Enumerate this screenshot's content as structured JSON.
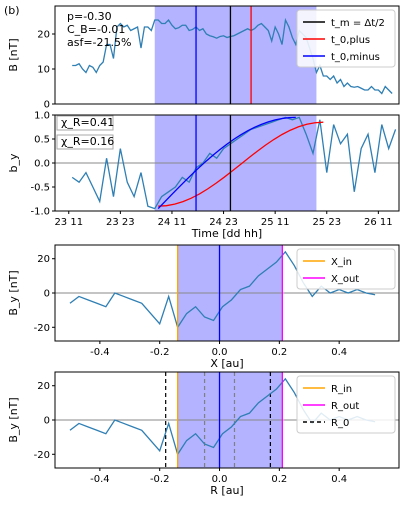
{
  "panel_label": "(b)",
  "chart_data": [
    {
      "type": "line",
      "ylabel": "B [nT]",
      "ylim": [
        0,
        28
      ],
      "yticks": [
        "0",
        "10",
        "20"
      ],
      "xlim": [
        0,
        5
      ],
      "annotations": [
        "p=-0.30",
        "C_B=-0.01",
        "asf=-21.5%"
      ],
      "legend": [
        "t_m = Δt/2",
        "t_0,plus",
        "t_0,minus"
      ],
      "legend_colors": [
        "#000000",
        "#ff0000",
        "#0000ff"
      ],
      "shade": [
        1.45,
        3.8
      ],
      "vlines": [
        {
          "x": 2.05,
          "color": "#0000ff"
        },
        {
          "x": 2.55,
          "color": "#000000"
        },
        {
          "x": 2.85,
          "color": "#ff0000"
        }
      ],
      "series": [
        {
          "color": "#2f7fb4",
          "x": [
            0.25,
            0.3,
            0.35,
            0.4,
            0.45,
            0.5,
            0.55,
            0.6,
            0.65,
            0.7,
            0.75,
            0.8,
            0.85,
            0.9,
            0.95,
            1.0,
            1.05,
            1.1,
            1.15,
            1.2,
            1.25,
            1.3,
            1.35,
            1.4,
            1.45,
            1.5,
            1.55,
            1.6,
            1.65,
            1.7,
            1.75,
            1.8,
            1.85,
            1.9,
            1.95,
            2.0,
            2.05,
            2.1,
            2.15,
            2.2,
            2.25,
            2.3,
            2.35,
            2.4,
            2.45,
            2.5,
            2.55,
            2.6,
            2.65,
            2.7,
            2.75,
            2.8,
            2.85,
            2.9,
            2.95,
            3.0,
            3.05,
            3.1,
            3.15,
            3.2,
            3.25,
            3.3,
            3.35,
            3.4,
            3.45,
            3.5,
            3.55,
            3.6,
            3.65,
            3.7,
            3.75,
            3.8,
            3.85,
            3.9,
            3.95,
            4.0,
            4.05,
            4.1,
            4.15,
            4.2,
            4.25,
            4.3,
            4.35,
            4.4,
            4.45,
            4.5,
            4.55,
            4.6,
            4.65,
            4.7,
            4.75,
            4.8,
            4.85,
            4.9
          ],
          "values": [
            11,
            11,
            11.5,
            10,
            9,
            11,
            10.5,
            9,
            11,
            12,
            17,
            17,
            13,
            22,
            23,
            22,
            22.5,
            21,
            21.5,
            22,
            16,
            22,
            22,
            21,
            24,
            24,
            23,
            23,
            24,
            22.5,
            21.5,
            21.8,
            22.5,
            22.5,
            21,
            21.3,
            22,
            21,
            21.5,
            20,
            19.5,
            19.2,
            18.8,
            19.3,
            19.5,
            19,
            19.3,
            19.5,
            20,
            20.5,
            21,
            21.5,
            21,
            21.5,
            22.5,
            23,
            22,
            21,
            18,
            22,
            20,
            17,
            24,
            22,
            19,
            17,
            21,
            20,
            19,
            16,
            13,
            9,
            11,
            8,
            8,
            7,
            8,
            6,
            7,
            5,
            6,
            5,
            4.8,
            5,
            4.5,
            4,
            4,
            5,
            4,
            4,
            3,
            5,
            4,
            3
          ]
        }
      ]
    },
    {
      "type": "line",
      "ylabel": "b_y",
      "ylim": [
        -1,
        1
      ],
      "yticks": [
        "-1.0",
        "-0.5",
        "0.0",
        "0.5",
        "1.0"
      ],
      "xlabel": "Time [dd hh]",
      "xticks": [
        "23 11",
        "23 23",
        "24 11",
        "24 23",
        "25 11",
        "25 23",
        "26 11"
      ],
      "xlim": [
        0,
        5
      ],
      "chi_labels": [
        "χ_R=0.41",
        "χ_R=0.16"
      ],
      "shade": [
        1.45,
        3.8
      ],
      "vlines": [
        {
          "x": 2.05,
          "color": "#0000ff"
        },
        {
          "x": 2.55,
          "color": "#000000"
        }
      ],
      "fit_red": {
        "x": [
          1.5,
          3.9
        ],
        "y": [
          -0.9,
          0.85
        ]
      },
      "fit_blue": {
        "x": [
          1.5,
          3.5
        ],
        "y": [
          -0.95,
          0.95
        ]
      },
      "series": [
        {
          "color": "#2f7fb4",
          "x": [
            0.25,
            0.35,
            0.45,
            0.55,
            0.65,
            0.75,
            0.85,
            0.95,
            1.05,
            1.15,
            1.25,
            1.35,
            1.45,
            1.55,
            1.65,
            1.75,
            1.85,
            1.95,
            2.05,
            2.15,
            2.25,
            2.35,
            2.45,
            2.55,
            2.65,
            2.75,
            2.85,
            2.95,
            3.05,
            3.15,
            3.25,
            3.35,
            3.45,
            3.55,
            3.65,
            3.75,
            3.85,
            3.95,
            4.05,
            4.15,
            4.25,
            4.35,
            4.45,
            4.55,
            4.65,
            4.75,
            4.85,
            4.95
          ],
          "values": [
            -0.3,
            -0.4,
            -0.2,
            -0.5,
            -0.8,
            0.1,
            -0.7,
            0.3,
            -0.4,
            -0.7,
            -0.2,
            -0.9,
            -0.95,
            -0.7,
            -0.6,
            -0.5,
            -0.3,
            -0.4,
            -0.1,
            0.0,
            0.2,
            0.1,
            0.3,
            0.4,
            0.5,
            0.6,
            0.7,
            0.75,
            0.8,
            0.85,
            0.9,
            0.95,
            0.9,
            0.95,
            0.6,
            0.2,
            0.9,
            -0.2,
            0.8,
            0.4,
            0.6,
            -0.6,
            0.3,
            0.6,
            -0.2,
            0.8,
            0.3,
            0.7
          ]
        }
      ]
    },
    {
      "type": "line",
      "ylabel": "B_y [nT]",
      "ylim": [
        -28,
        28
      ],
      "yticks": [
        "-20",
        "0",
        "20"
      ],
      "xlabel": "X [au]",
      "xticks": [
        "-0.4",
        "-0.2",
        "0.0",
        "0.2",
        "0.4"
      ],
      "xlim": [
        -0.55,
        0.6
      ],
      "legend": [
        "X_in",
        "X_out"
      ],
      "legend_colors": [
        "#ffa500",
        "#ff00ff"
      ],
      "shade": [
        -0.14,
        0.21
      ],
      "vlines": [
        {
          "x": -0.14,
          "color": "#ffa500"
        },
        {
          "x": 0.0,
          "color": "#0000ff"
        },
        {
          "x": 0.21,
          "color": "#ff00ff"
        }
      ],
      "series": [
        {
          "color": "#2f7fb4",
          "x": [
            -0.5,
            -0.47,
            -0.44,
            -0.41,
            -0.38,
            -0.35,
            -0.32,
            -0.29,
            -0.26,
            -0.23,
            -0.2,
            -0.17,
            -0.14,
            -0.11,
            -0.08,
            -0.05,
            -0.02,
            0.01,
            0.04,
            0.07,
            0.1,
            0.13,
            0.16,
            0.19,
            0.22,
            0.25,
            0.28,
            0.31,
            0.34,
            0.37,
            0.4,
            0.43,
            0.46,
            0.49,
            0.52
          ],
          "values": [
            -6,
            -2,
            -4,
            -6,
            -8,
            0,
            -2,
            -4,
            -6,
            -12,
            -18,
            -2,
            -20,
            -12,
            -8,
            -14,
            -16,
            -8,
            -4,
            2,
            4,
            10,
            14,
            18,
            24,
            16,
            6,
            -2,
            4,
            0,
            2,
            0,
            2,
            0,
            -1
          ]
        }
      ]
    },
    {
      "type": "line",
      "ylabel": "B_y [nT]",
      "ylim": [
        -28,
        28
      ],
      "yticks": [
        "-20",
        "0",
        "20"
      ],
      "xlabel": "R [au]",
      "xticks": [
        "-0.4",
        "-0.2",
        "0.0",
        "0.2",
        "0.4"
      ],
      "xlim": [
        -0.55,
        0.6
      ],
      "legend": [
        "R_in",
        "R_out",
        "R_0"
      ],
      "legend_colors": [
        "#ffa500",
        "#ff00ff",
        "#000000"
      ],
      "shade": [
        -0.14,
        0.21
      ],
      "vlines": [
        {
          "x": -0.14,
          "color": "#ffa500"
        },
        {
          "x": 0.0,
          "color": "#0000ff"
        },
        {
          "x": 0.21,
          "color": "#ff00ff"
        }
      ],
      "dashed_black": [
        -0.18,
        0.17
      ],
      "dashed_gray": [
        -0.05,
        0.05
      ],
      "series": [
        {
          "color": "#2f7fb4",
          "x": [
            -0.5,
            -0.47,
            -0.44,
            -0.41,
            -0.38,
            -0.35,
            -0.32,
            -0.29,
            -0.26,
            -0.23,
            -0.2,
            -0.17,
            -0.14,
            -0.11,
            -0.08,
            -0.05,
            -0.02,
            0.01,
            0.04,
            0.07,
            0.1,
            0.13,
            0.16,
            0.19,
            0.22,
            0.25,
            0.28,
            0.31,
            0.34,
            0.37,
            0.4,
            0.43,
            0.46,
            0.49,
            0.52
          ],
          "values": [
            -6,
            -2,
            -4,
            -6,
            -8,
            0,
            -2,
            -4,
            -6,
            -12,
            -18,
            -2,
            -20,
            -12,
            -8,
            -14,
            -16,
            -8,
            -4,
            2,
            4,
            10,
            14,
            18,
            24,
            16,
            6,
            -2,
            4,
            0,
            2,
            0,
            2,
            0,
            -1
          ]
        }
      ]
    }
  ]
}
